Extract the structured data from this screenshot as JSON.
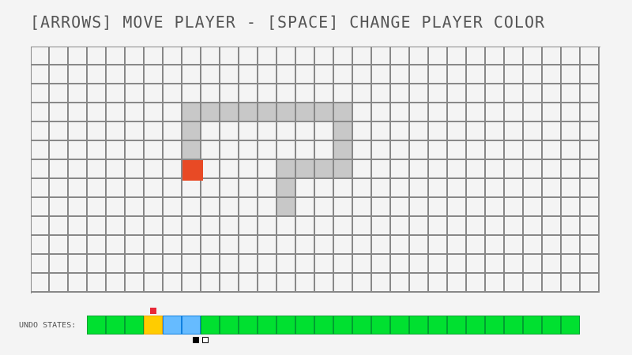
{
  "title": "[ARROWS] MOVE PLAYER - [SPACE] CHANGE PLAYER COLOR",
  "board": {
    "columns": 30,
    "rows": 13,
    "colors": {
      "background": "#f4f4f4",
      "wall": "#c8c8c8",
      "grid_line": "#888888",
      "player": "#e84a25"
    },
    "player": {
      "col": 8,
      "row": 6
    },
    "walls": [
      [
        8,
        3
      ],
      [
        9,
        3
      ],
      [
        10,
        3
      ],
      [
        11,
        3
      ],
      [
        12,
        3
      ],
      [
        13,
        3
      ],
      [
        14,
        3
      ],
      [
        15,
        3
      ],
      [
        16,
        3
      ],
      [
        8,
        4
      ],
      [
        16,
        4
      ],
      [
        8,
        5
      ],
      [
        16,
        5
      ],
      [
        13,
        6
      ],
      [
        14,
        6
      ],
      [
        15,
        6
      ],
      [
        16,
        6
      ],
      [
        13,
        7
      ],
      [
        13,
        8
      ]
    ]
  },
  "undo": {
    "label": "UNDO STATES:",
    "states": [
      "green",
      "green",
      "green",
      "yellow",
      "blue",
      "blue",
      "green",
      "green",
      "green",
      "green",
      "green",
      "green",
      "green",
      "green",
      "green",
      "green",
      "green",
      "green",
      "green",
      "green",
      "green",
      "green",
      "green",
      "green",
      "green",
      "green"
    ],
    "state_colors": {
      "green": {
        "fill": "#00e030",
        "border": "#00a030"
      },
      "yellow": {
        "fill": "#ffcc00",
        "border": "#f0a000"
      },
      "blue": {
        "fill": "#66bbff",
        "border": "#1080e0"
      }
    },
    "current_index": 3,
    "current_marker_color": "#e82838",
    "cursor_index": 5
  }
}
